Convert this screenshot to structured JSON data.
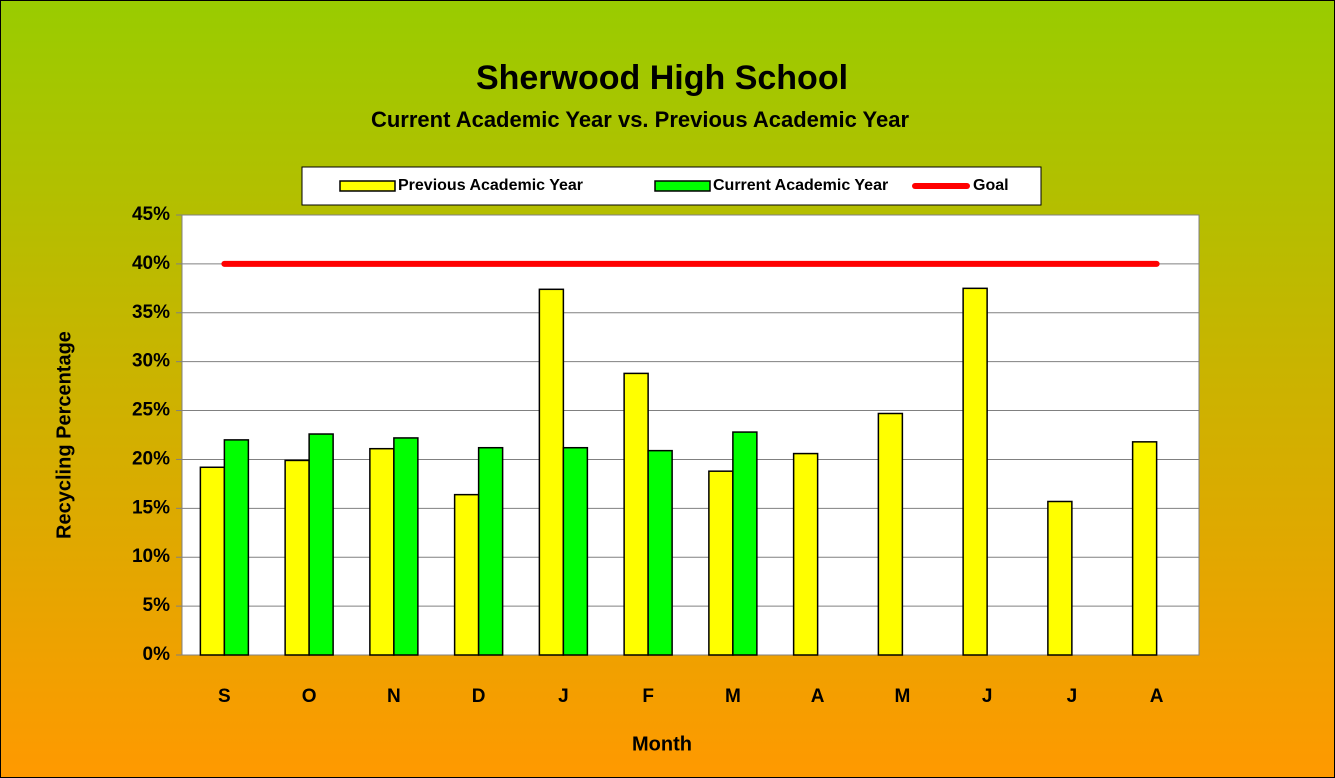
{
  "chart_data": {
    "type": "bar",
    "title": "Sherwood High School",
    "subtitle": "Current Academic Year vs. Previous Academic Year",
    "x_label": "Month",
    "y_label": "Recycling Percentage",
    "categories": [
      "S",
      "O",
      "N",
      "D",
      "J",
      "F",
      "M",
      "A",
      "M",
      "J",
      "J",
      "A"
    ],
    "series": [
      {
        "name": "Previous Academic Year",
        "color": "#ffff00",
        "values": [
          19.2,
          19.9,
          21.1,
          16.4,
          37.4,
          28.8,
          18.8,
          20.6,
          24.7,
          37.5,
          15.7,
          21.8
        ]
      },
      {
        "name": "Current Academic Year",
        "color": "#00ff00",
        "values": [
          22.0,
          22.6,
          22.2,
          21.2,
          21.2,
          20.9,
          22.8,
          null,
          null,
          null,
          null,
          null
        ]
      },
      {
        "name": "Goal",
        "color": "#ff0000",
        "type": "line",
        "values": [
          40,
          40,
          40,
          40,
          40,
          40,
          40,
          40,
          40,
          40,
          40,
          40
        ]
      }
    ],
    "ylim": [
      0,
      45
    ],
    "yticks": [
      {
        "value": 0,
        "label": "0%"
      },
      {
        "value": 5,
        "label": "5%"
      },
      {
        "value": 10,
        "label": "10%"
      },
      {
        "value": 15,
        "label": "15%"
      },
      {
        "value": 20,
        "label": "20%"
      },
      {
        "value": 25,
        "label": "25%"
      },
      {
        "value": 30,
        "label": "30%"
      },
      {
        "value": 35,
        "label": "35%"
      },
      {
        "value": 40,
        "label": "40%"
      },
      {
        "value": 45,
        "label": "45%"
      }
    ],
    "grid": true,
    "legend": "top"
  }
}
